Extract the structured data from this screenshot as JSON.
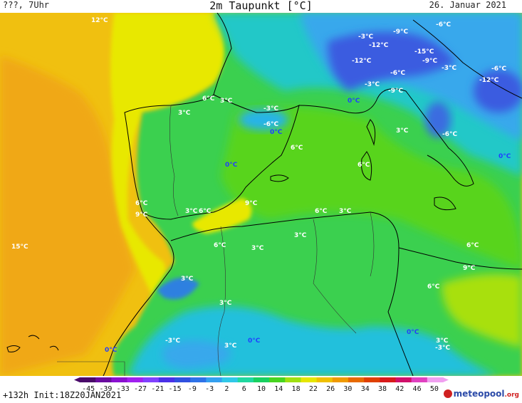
{
  "header": {
    "left": "???, 7Uhr",
    "title": "2m Taupunkt [°C]",
    "date": "26. Januar 2021"
  },
  "footer": {
    "run": "+132h  Init:18Z20JAN2021",
    "logo_text": "meteopool",
    "logo_suffix": ".org"
  },
  "legend": {
    "ticks": [
      "-45",
      "-39",
      "-33",
      "-27",
      "-21",
      "-15",
      "-9",
      "-3",
      "2",
      "6",
      "10",
      "14",
      "18",
      "22",
      "26",
      "30",
      "34",
      "38",
      "42",
      "46",
      "50"
    ],
    "colors": [
      "#4a0a6a",
      "#6a0ca0",
      "#8a10d0",
      "#a020f0",
      "#8040ff",
      "#4a30e8",
      "#3050e0",
      "#2e72e8",
      "#34a0f0",
      "#30c8e8",
      "#20d8a0",
      "#18d060",
      "#48d420",
      "#a0e010",
      "#e6e600",
      "#f0c000",
      "#f09a00",
      "#e86a00",
      "#e04000",
      "#d81a1a",
      "#d0106a",
      "#e040c0",
      "#f0a0f0"
    ]
  },
  "map_labels": [
    {
      "text": "12°C",
      "c": "w"
    },
    {
      "text": "-3°C",
      "c": "w"
    },
    {
      "text": "-9°C",
      "c": "w"
    },
    {
      "text": "-6°C",
      "c": "w"
    },
    {
      "text": "-12°C",
      "c": "w"
    },
    {
      "text": "-15°C",
      "c": "w"
    },
    {
      "text": "-9°C",
      "c": "w"
    },
    {
      "text": "-12°C",
      "c": "w"
    },
    {
      "text": "-6°C",
      "c": "w"
    },
    {
      "text": "-3°C",
      "c": "w"
    },
    {
      "text": "-6°C",
      "c": "w"
    },
    {
      "text": "-12°C",
      "c": "w"
    },
    {
      "text": "-3°C",
      "c": "w"
    },
    {
      "text": "-9°C",
      "c": "w"
    },
    {
      "text": "0°C",
      "c": "b"
    },
    {
      "text": "6°C",
      "c": "w"
    },
    {
      "text": "3°C",
      "c": "w"
    },
    {
      "text": "3°C",
      "c": "w"
    },
    {
      "text": "-3°C",
      "c": "w"
    },
    {
      "text": "-6°C",
      "c": "w"
    },
    {
      "text": "0°C",
      "c": "b"
    },
    {
      "text": "3°C",
      "c": "w"
    },
    {
      "text": "-6°C",
      "c": "w"
    },
    {
      "text": "6°C",
      "c": "w"
    },
    {
      "text": "0°C",
      "c": "b"
    },
    {
      "text": "6°C",
      "c": "w"
    },
    {
      "text": "0°C",
      "c": "b"
    },
    {
      "text": "6°C",
      "c": "w"
    },
    {
      "text": "9°C",
      "c": "w"
    },
    {
      "text": "3°C",
      "c": "w"
    },
    {
      "text": "6°C",
      "c": "w"
    },
    {
      "text": "9°C",
      "c": "w"
    },
    {
      "text": "6°C",
      "c": "w"
    },
    {
      "text": "3°C",
      "c": "w"
    },
    {
      "text": "3°C",
      "c": "w"
    },
    {
      "text": "15°C",
      "c": "w"
    },
    {
      "text": "6°C",
      "c": "w"
    },
    {
      "text": "3°C",
      "c": "w"
    },
    {
      "text": "6°C",
      "c": "w"
    },
    {
      "text": "9°C",
      "c": "w"
    },
    {
      "text": "3°C",
      "c": "w"
    },
    {
      "text": "6°C",
      "c": "w"
    },
    {
      "text": "3°C",
      "c": "w"
    },
    {
      "text": "0°C",
      "c": "b"
    },
    {
      "text": "-3°C",
      "c": "w"
    },
    {
      "text": "3°C",
      "c": "w"
    },
    {
      "text": "0°C",
      "c": "b"
    },
    {
      "text": "3°C",
      "c": "w"
    },
    {
      "text": "-3°C",
      "c": "w"
    },
    {
      "text": "0°C",
      "c": "b"
    }
  ]
}
